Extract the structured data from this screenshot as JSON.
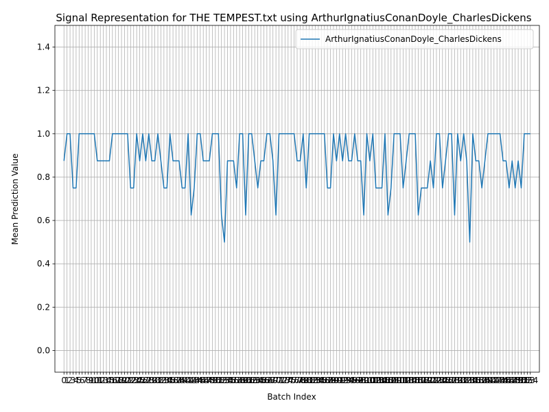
{
  "chart_data": {
    "type": "line",
    "title": "Signal Representation for THE TEMPEST.txt using ArthurIgnatiusConanDoyle_CharlesDickens",
    "xlabel": "Batch Index",
    "ylabel": "Mean Prediction Value",
    "xlim": [
      -3,
      157
    ],
    "ylim": [
      -0.1,
      1.5
    ],
    "yticks": [
      0.0,
      0.2,
      0.4,
      0.6,
      0.8,
      1.0,
      1.2,
      1.4
    ],
    "grid": true,
    "legend_position": "upper-right",
    "series": [
      {
        "name": "ArthurIgnatiusConanDoyle_CharlesDickens",
        "color": "#1f77b4",
        "values": [
          0.875,
          1.0,
          1.0,
          0.75,
          0.75,
          1.0,
          1.0,
          1.0,
          1.0,
          1.0,
          1.0,
          0.875,
          0.875,
          0.875,
          0.875,
          0.875,
          1.0,
          1.0,
          1.0,
          1.0,
          1.0,
          1.0,
          0.75,
          0.75,
          1.0,
          0.875,
          1.0,
          0.875,
          1.0,
          0.875,
          0.875,
          1.0,
          0.875,
          0.75,
          0.75,
          1.0,
          0.875,
          0.875,
          0.875,
          0.75,
          0.75,
          1.0,
          0.625,
          0.75,
          1.0,
          1.0,
          0.875,
          0.875,
          0.875,
          1.0,
          1.0,
          1.0,
          0.625,
          0.5,
          0.875,
          0.875,
          0.875,
          0.75,
          1.0,
          1.0,
          0.625,
          1.0,
          1.0,
          0.875,
          0.75,
          0.875,
          0.875,
          1.0,
          1.0,
          0.875,
          0.625,
          1.0,
          1.0,
          1.0,
          1.0,
          1.0,
          1.0,
          0.875,
          0.875,
          1.0,
          0.75,
          1.0,
          1.0,
          1.0,
          1.0,
          1.0,
          1.0,
          0.75,
          0.75,
          1.0,
          0.875,
          1.0,
          0.875,
          1.0,
          0.875,
          0.875,
          1.0,
          0.875,
          0.875,
          0.625,
          1.0,
          0.875,
          1.0,
          0.75,
          0.75,
          0.75,
          1.0,
          0.625,
          0.75,
          1.0,
          1.0,
          1.0,
          0.75,
          0.875,
          1.0,
          1.0,
          1.0,
          0.625,
          0.75,
          0.75,
          0.75,
          0.875,
          0.75,
          1.0,
          1.0,
          0.75,
          0.875,
          1.0,
          1.0,
          0.625,
          1.0,
          0.875,
          1.0,
          0.875,
          0.5,
          1.0,
          0.875,
          0.875,
          0.75,
          0.875,
          1.0,
          1.0,
          1.0,
          1.0,
          1.0,
          0.875,
          0.875,
          0.75,
          0.875,
          0.75,
          0.875,
          0.75,
          1.0,
          1.0,
          1.0
        ]
      }
    ]
  }
}
